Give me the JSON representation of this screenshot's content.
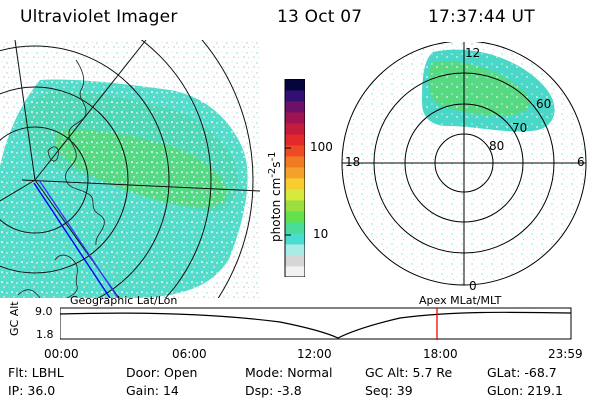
{
  "header": {
    "instrument": "Ultraviolet Imager",
    "date": "13 Oct 07",
    "time": "17:37:44 UT"
  },
  "colorbar": {
    "label": "photon cm",
    "label_sup1": "-2",
    "label_mid": "s",
    "label_sup2": "-1",
    "tick_high": "100",
    "tick_low": "10",
    "colors": [
      "#f2f2f2",
      "#d6d6d6",
      "#a9ebe6",
      "#48ddcf",
      "#49db99",
      "#63e14d",
      "#9adf3f",
      "#d8e93d",
      "#f7cd2f",
      "#f4a12c",
      "#f07b22",
      "#ee4a23",
      "#e1282b",
      "#c31c3d",
      "#9e1452",
      "#6d1067",
      "#321072",
      "#05043d"
    ],
    "scale": "log"
  },
  "polar": {
    "labels": {
      "top": "12",
      "left": "18",
      "right": "6",
      "bottom": "0",
      "ring60": "60",
      "ring70": "70",
      "ring80": "80"
    }
  },
  "map": {
    "projection_label": "Geographic Lat/Lon"
  },
  "orbit": {
    "left_title": "Geographic Lat/Lon",
    "right_title": "Apex MLat/MLT",
    "ylabel": "GC Alt",
    "ytick_top": "9.0",
    "ytick_bottom": "1.8",
    "xticks": [
      "00:00",
      "06:00",
      "12:00",
      "18:00",
      "23:59"
    ],
    "marker_color": "#ff0000"
  },
  "footer": {
    "flt_label": "Flt:",
    "flt_value": "LBHL",
    "ip_label": "IP:",
    "ip_value": "36.0",
    "door_label": "Door:",
    "door_value": "Open",
    "gain_label": "Gain:",
    "gain_value": "14",
    "mode_label": "Mode:",
    "mode_value": "Normal",
    "dsp_label": "Dsp:",
    "dsp_value": "-3.8",
    "gcalt_label": "GC Alt:",
    "gcalt_value": "5.7 Re",
    "seq_label": "Seq:",
    "seq_value": "39",
    "glat_label": "GLat:",
    "glat_value": "-68.7",
    "glon_label": "GLon:",
    "glon_value": "219.1"
  }
}
